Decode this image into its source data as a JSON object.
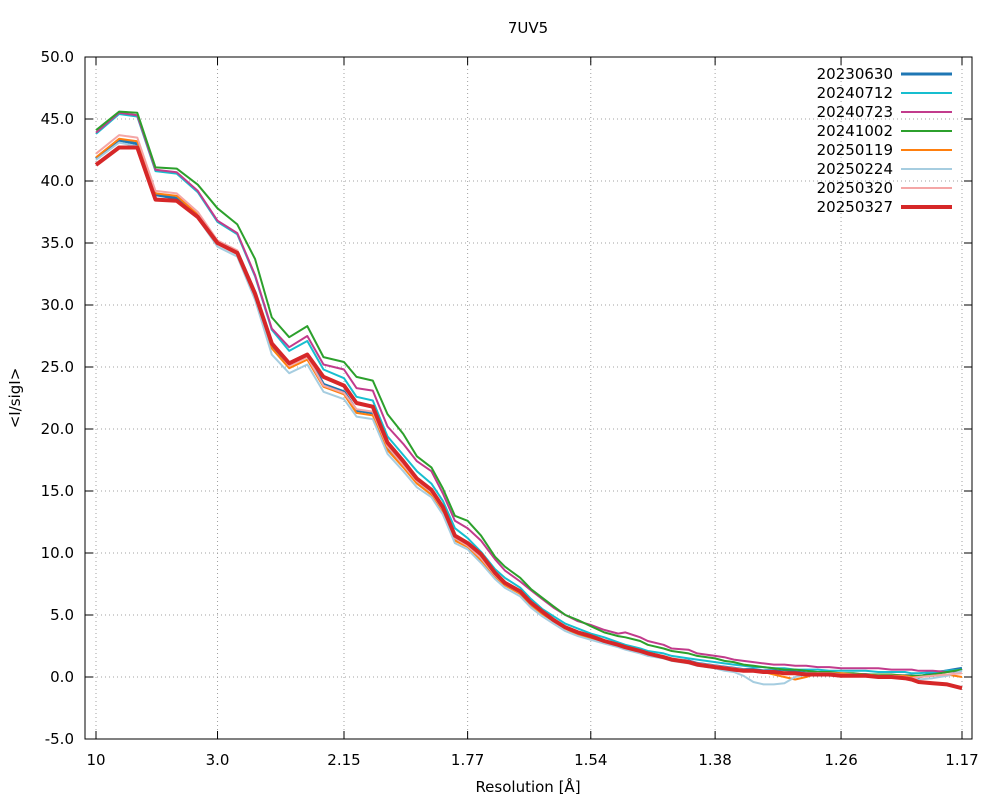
{
  "chart_data": {
    "type": "line",
    "title": "7UV5",
    "xlabel": "Resolution [Å]",
    "ylabel": "<I/sigI>",
    "x_scale": "1/d^2",
    "xlim": [
      10,
      1.17
    ],
    "ylim": [
      -5,
      50
    ],
    "xticks": [
      "10",
      "3.0",
      "2.15",
      "1.77",
      "1.54",
      "1.38",
      "1.26",
      "1.17"
    ],
    "yticks": [
      "-5.0",
      "0.0",
      "5.0",
      "10.0",
      "15.0",
      "20.0",
      "25.0",
      "30.0",
      "35.0",
      "40.0",
      "45.0",
      "50.0"
    ],
    "grid": true,
    "legend_position": "top-right",
    "x": [
      10,
      5.85,
      4.75,
      4.1,
      3.6,
      3.25,
      3.0,
      2.8,
      2.65,
      2.53,
      2.42,
      2.32,
      2.24,
      2.15,
      2.1,
      2.04,
      1.99,
      1.94,
      1.9,
      1.86,
      1.83,
      1.8,
      1.77,
      1.74,
      1.71,
      1.69,
      1.66,
      1.64,
      1.62,
      1.6,
      1.58,
      1.56,
      1.54,
      1.52,
      1.5,
      1.49,
      1.47,
      1.46,
      1.44,
      1.43,
      1.41,
      1.4,
      1.38,
      1.37,
      1.36,
      1.35,
      1.34,
      1.33,
      1.32,
      1.31,
      1.3,
      1.29,
      1.28,
      1.27,
      1.26,
      1.25,
      1.24,
      1.23,
      1.22,
      1.21,
      1.205,
      1.2,
      1.19,
      1.18,
      1.17
    ],
    "series": [
      {
        "name": "20230630",
        "color": "#1f77b4",
        "width": 3,
        "values": [
          41.8,
          43.3,
          43.0,
          38.9,
          38.6,
          37.2,
          35.0,
          34.3,
          31.0,
          26.8,
          25.2,
          25.9,
          23.6,
          23.0,
          21.5,
          21.3,
          18.5,
          17.1,
          15.8,
          14.9,
          13.5,
          11.2,
          10.6,
          9.6,
          8.2,
          7.5,
          6.8,
          5.9,
          5.2,
          4.6,
          4.0,
          3.5,
          3.2,
          2.8,
          2.6,
          2.3,
          2.1,
          1.8,
          1.6,
          1.4,
          1.3,
          1.1,
          0.9,
          0.8,
          0.7,
          0.6,
          0.6,
          0.5,
          0.5,
          0.4,
          0.4,
          0.3,
          0.3,
          0.2,
          0.2,
          0.2,
          0.2,
          0.1,
          0.1,
          0.1,
          0.1,
          0.0,
          0.3,
          0.5,
          0.7
        ]
      },
      {
        "name": "20240712",
        "color": "#17becf",
        "width": 2,
        "values": [
          43.8,
          45.4,
          45.2,
          40.8,
          40.6,
          39.1,
          36.7,
          35.7,
          32.3,
          28.0,
          26.3,
          27.1,
          24.8,
          24.1,
          22.6,
          22.3,
          19.4,
          17.9,
          16.6,
          15.6,
          14.2,
          12.0,
          11.2,
          10.1,
          8.7,
          8.0,
          7.2,
          6.3,
          5.5,
          4.9,
          4.3,
          3.9,
          3.5,
          3.2,
          2.8,
          2.6,
          2.3,
          2.1,
          1.9,
          1.7,
          1.5,
          1.4,
          1.2,
          1.1,
          1.0,
          0.9,
          0.8,
          0.8,
          0.7,
          0.7,
          0.6,
          0.6,
          0.6,
          0.5,
          0.5,
          0.5,
          0.5,
          0.4,
          0.4,
          0.4,
          0.3,
          0.3,
          0.4,
          0.5,
          0.6
        ]
      },
      {
        "name": "20240723",
        "color": "#c23b8c",
        "width": 2,
        "values": [
          43.9,
          45.5,
          45.3,
          40.9,
          40.7,
          39.2,
          36.8,
          35.8,
          32.4,
          28.1,
          26.6,
          27.5,
          25.2,
          24.8,
          23.3,
          23.1,
          20.2,
          18.8,
          17.4,
          16.6,
          14.8,
          12.6,
          12.0,
          11.0,
          9.5,
          8.6,
          7.7,
          7.0,
          6.3,
          5.6,
          5.0,
          4.5,
          4.2,
          3.8,
          3.5,
          3.6,
          3.2,
          2.9,
          2.6,
          2.3,
          2.2,
          1.9,
          1.7,
          1.6,
          1.4,
          1.3,
          1.2,
          1.1,
          1.0,
          1.0,
          0.9,
          0.9,
          0.8,
          0.8,
          0.7,
          0.7,
          0.7,
          0.7,
          0.6,
          0.6,
          0.6,
          0.5,
          0.5,
          0.4,
          0.5
        ]
      },
      {
        "name": "20241002",
        "color": "#2ca02c",
        "width": 2,
        "values": [
          44.1,
          45.6,
          45.5,
          41.1,
          41.0,
          39.7,
          37.8,
          36.5,
          33.7,
          29.0,
          27.4,
          28.3,
          25.8,
          25.4,
          24.2,
          23.9,
          21.2,
          19.6,
          17.8,
          16.9,
          15.2,
          13.0,
          12.6,
          11.4,
          9.7,
          8.9,
          8.0,
          7.1,
          6.4,
          5.7,
          5.0,
          4.6,
          4.1,
          3.6,
          3.3,
          3.2,
          2.9,
          2.6,
          2.3,
          2.1,
          1.9,
          1.7,
          1.5,
          1.3,
          1.2,
          1.0,
          0.9,
          0.8,
          0.7,
          0.6,
          0.6,
          0.5,
          0.4,
          0.4,
          0.3,
          0.3,
          0.2,
          0.2,
          0.2,
          0.1,
          0.1,
          0.1,
          0.2,
          0.4,
          0.6
        ]
      },
      {
        "name": "20250119",
        "color": "#ff7f0e",
        "width": 2,
        "values": [
          41.9,
          43.4,
          43.2,
          39.0,
          38.8,
          37.3,
          35.1,
          34.2,
          30.8,
          26.5,
          24.9,
          25.6,
          23.4,
          22.8,
          21.3,
          21.1,
          18.3,
          16.9,
          15.6,
          14.7,
          13.3,
          11.0,
          10.5,
          9.4,
          8.1,
          7.4,
          6.7,
          5.8,
          5.1,
          4.5,
          3.9,
          3.4,
          3.1,
          2.8,
          2.5,
          2.3,
          2.0,
          1.8,
          1.6,
          1.4,
          1.2,
          1.0,
          0.8,
          0.7,
          0.6,
          0.5,
          0.5,
          0.4,
          0.2,
          0.0,
          -0.2,
          0.0,
          0.3,
          0.3,
          0.3,
          0.2,
          0.2,
          0.1,
          0.1,
          0.1,
          0.0,
          0.0,
          0.1,
          0.2,
          0.0
        ]
      },
      {
        "name": "20250224",
        "color": "#a6cde0",
        "width": 2,
        "values": [
          41.7,
          43.1,
          42.8,
          38.6,
          38.4,
          37.0,
          34.7,
          33.9,
          30.4,
          26.0,
          24.5,
          25.2,
          23.0,
          22.4,
          21.0,
          20.8,
          18.0,
          16.6,
          15.3,
          14.5,
          13.1,
          10.8,
          10.3,
          9.2,
          7.9,
          7.2,
          6.5,
          5.6,
          4.9,
          4.3,
          3.7,
          3.3,
          3.0,
          2.7,
          2.4,
          2.2,
          1.9,
          1.7,
          1.5,
          1.3,
          1.1,
          0.9,
          0.7,
          0.5,
          0.4,
          0.1,
          -0.4,
          -0.6,
          -0.6,
          -0.5,
          0.0,
          0.2,
          0.3,
          0.3,
          0.2,
          0.2,
          0.1,
          0.1,
          0.0,
          0.0,
          -0.1,
          -0.2,
          -0.1,
          0.1,
          0.5
        ]
      },
      {
        "name": "20250320",
        "color": "#f4a6a6",
        "width": 2,
        "values": [
          42.2,
          43.7,
          43.5,
          39.2,
          39.0,
          37.5,
          35.2,
          34.4,
          31.1,
          26.9,
          25.1,
          25.8,
          23.5,
          22.9,
          21.6,
          21.4,
          18.6,
          17.1,
          15.8,
          14.9,
          13.5,
          11.2,
          10.6,
          9.6,
          8.2,
          7.5,
          6.8,
          5.9,
          5.2,
          4.6,
          4.0,
          3.6,
          3.3,
          2.9,
          2.6,
          2.4,
          2.1,
          1.9,
          1.7,
          1.5,
          1.3,
          1.1,
          0.9,
          0.8,
          0.7,
          0.6,
          0.5,
          0.5,
          0.4,
          0.4,
          0.3,
          0.3,
          0.3,
          0.2,
          0.2,
          0.2,
          0.1,
          0.1,
          0.1,
          0.0,
          -0.1,
          0.0,
          0.1,
          0.2,
          0.3
        ]
      },
      {
        "name": "20250327",
        "color": "#d62728",
        "width": 4,
        "values": [
          41.3,
          42.7,
          42.7,
          38.5,
          38.4,
          37.1,
          35.0,
          34.2,
          30.9,
          26.9,
          25.3,
          26.0,
          24.2,
          23.5,
          22.1,
          21.8,
          18.9,
          17.4,
          16.0,
          15.1,
          13.7,
          11.4,
          10.8,
          9.9,
          8.4,
          7.6,
          6.9,
          6.0,
          5.3,
          4.6,
          4.0,
          3.6,
          3.3,
          2.9,
          2.6,
          2.4,
          2.1,
          1.9,
          1.6,
          1.4,
          1.2,
          1.0,
          0.8,
          0.7,
          0.6,
          0.5,
          0.5,
          0.4,
          0.4,
          0.3,
          0.3,
          0.2,
          0.2,
          0.2,
          0.1,
          0.1,
          0.1,
          0.0,
          0.0,
          -0.1,
          -0.2,
          -0.4,
          -0.5,
          -0.6,
          -0.9
        ]
      }
    ]
  }
}
